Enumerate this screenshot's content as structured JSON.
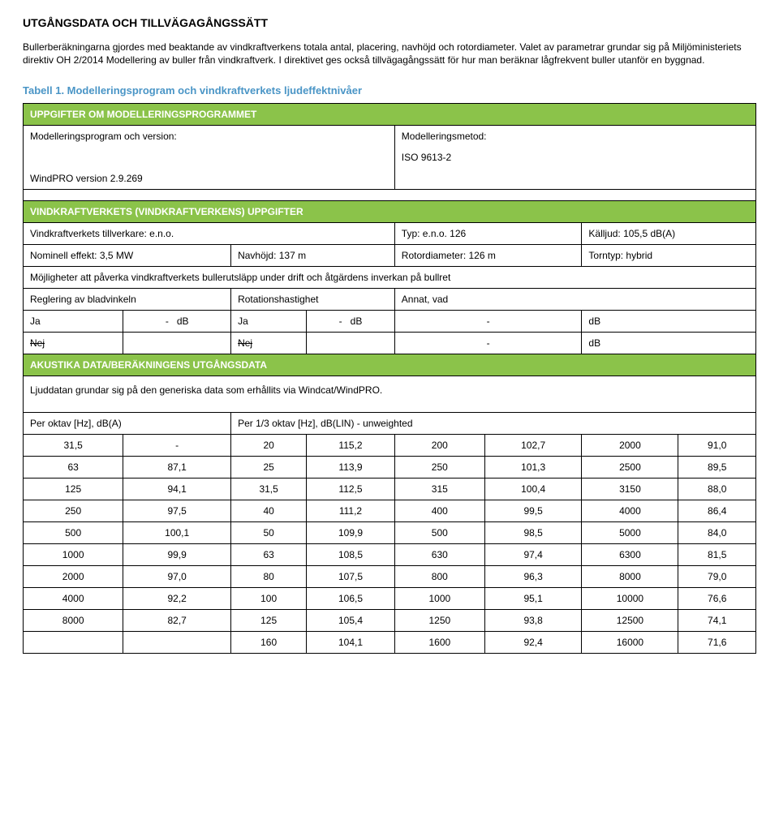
{
  "colors": {
    "header_bg": "#8bc34a",
    "tabell_title": "#4a95c6"
  },
  "title": "UTGÅNGSDATA OCH TILLVÄGAGÅNGSSÄTT",
  "intro": {
    "p1": "Bullerberäkningarna gjordes med beaktande av vindkraftverkens totala antal, placering, navhöjd och rotordiameter. Valet av parametrar grundar sig på Miljöministeriets direktiv OH 2/2014 Modellering av buller från vindkraftverk. I direktivet ges också tillvägagångssätt för hur man beräknar lågfrekvent buller utanför en byggnad."
  },
  "tabell1": {
    "title": "Tabell 1. Modelleringsprogram och vindkraftverkets ljudeffektnivåer",
    "section1_header": "UPPGIFTER OM MODELLERINGSPROGRAMMET",
    "program_label": "Modelleringsprogram och version:",
    "program_value": "WindPRO version 2.9.269",
    "method_label": "Modelleringsmetod:",
    "method_value": "ISO 9613-2",
    "section2_header": "VINDKRAFTVERKETS (VINDKRAFTVERKENS) UPPGIFTER",
    "manufacturer_label": "Vindkraftverkets tillverkare: e.n.o.",
    "type_label": "Typ: e.n.o. 126",
    "source_label": "Källjud: 105,5 dB(A)",
    "nominal_label": "Nominell effekt: 3,5 MW",
    "hub_label": "Navhöjd: 137 m",
    "rotor_label": "Rotordiameter: 126 m",
    "tower_label": "Torntyp: hybrid",
    "possibilities": "Möjligheter att påverka vindkraftverkets bullerutsläpp under drift och åtgärdens inverkan på bullret",
    "blade_label": "Reglering av bladvinkeln",
    "rotation_label": "Rotationshastighet",
    "other_label": "Annat, vad",
    "ja": "Ja",
    "nej": "Nej",
    "dash": "-",
    "db": "dB",
    "section3_header": "AKUSTIKA DATA/BERÄKNINGENS UTGÅNGSDATA",
    "acoustic_text": "Ljuddatan grundar sig på den generiska data som erhållits via Windcat/WindPRO."
  },
  "data_table": {
    "col1_header": "Per oktav [Hz], dB(A)",
    "col2_header": "Per 1/3 oktav [Hz], dB(LIN) - unweighted",
    "rows": [
      [
        "31,5",
        "-",
        "20",
        "115,2",
        "200",
        "102,7",
        "2000",
        "91,0"
      ],
      [
        "63",
        "87,1",
        "25",
        "113,9",
        "250",
        "101,3",
        "2500",
        "89,5"
      ],
      [
        "125",
        "94,1",
        "31,5",
        "112,5",
        "315",
        "100,4",
        "3150",
        "88,0"
      ],
      [
        "250",
        "97,5",
        "40",
        "111,2",
        "400",
        "99,5",
        "4000",
        "86,4"
      ],
      [
        "500",
        "100,1",
        "50",
        "109,9",
        "500",
        "98,5",
        "5000",
        "84,0"
      ],
      [
        "1000",
        "99,9",
        "63",
        "108,5",
        "630",
        "97,4",
        "6300",
        "81,5"
      ],
      [
        "2000",
        "97,0",
        "80",
        "107,5",
        "800",
        "96,3",
        "8000",
        "79,0"
      ],
      [
        "4000",
        "92,2",
        "100",
        "106,5",
        "1000",
        "95,1",
        "10000",
        "76,6"
      ],
      [
        "8000",
        "82,7",
        "125",
        "105,4",
        "1250",
        "93,8",
        "12500",
        "74,1"
      ],
      [
        "",
        "",
        "160",
        "104,1",
        "1600",
        "92,4",
        "16000",
        "71,6"
      ]
    ]
  }
}
